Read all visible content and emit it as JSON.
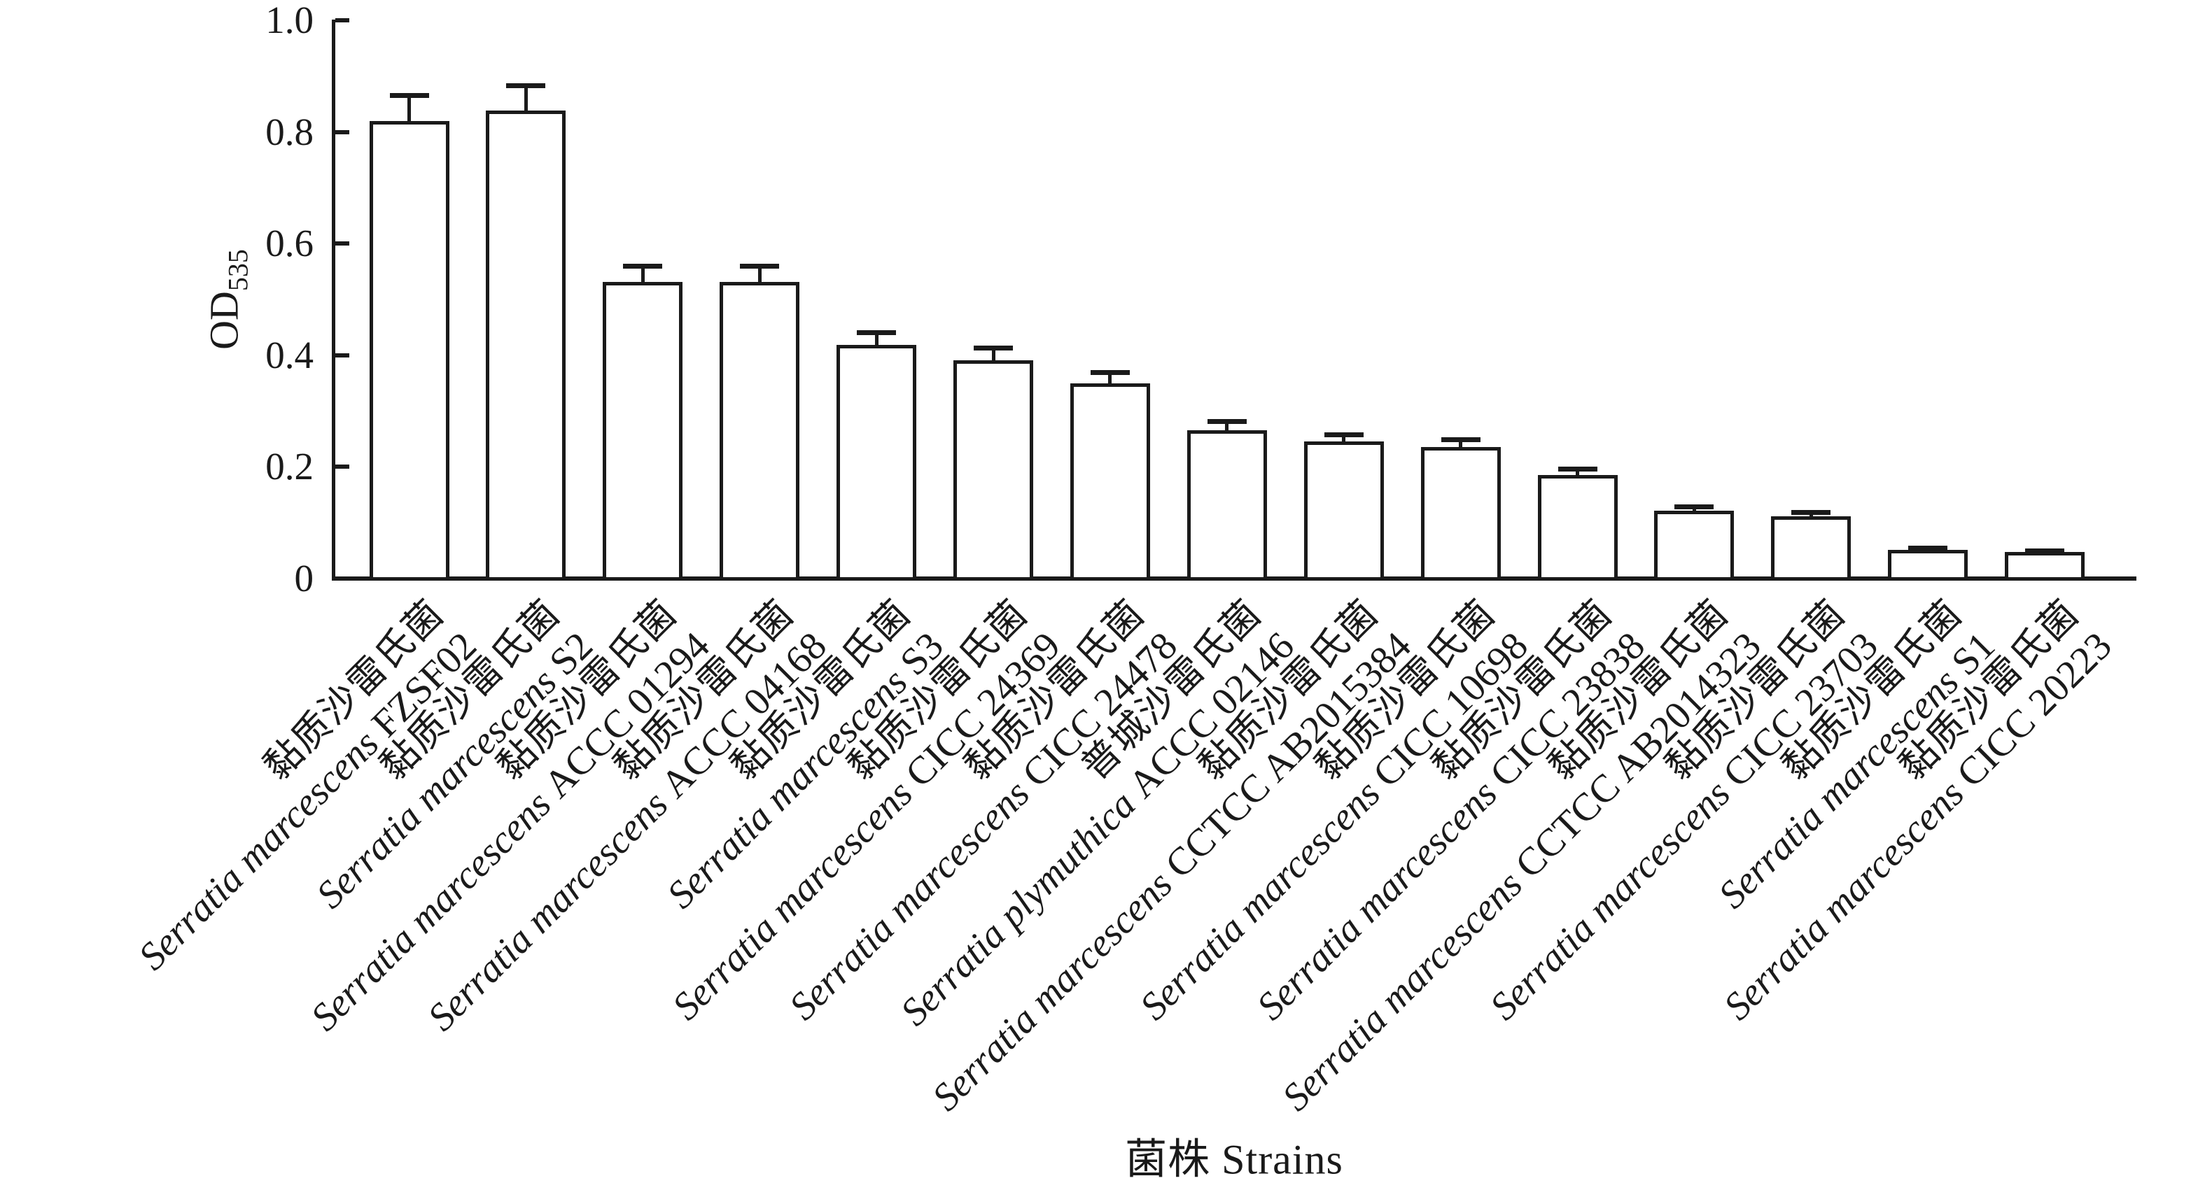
{
  "figure": {
    "x_axis_title": "菌株 Strains",
    "y_axis_label_main": "OD",
    "y_axis_label_sub": "535"
  },
  "chart_data": {
    "type": "bar",
    "title": "",
    "xlabel": "菌株 Strains",
    "ylabel": "OD535",
    "ylim": [
      0,
      1.0
    ],
    "yticks": [
      0,
      0.2,
      0.4,
      0.6,
      0.8,
      1.0
    ],
    "ytick_labels": [
      "0",
      "0.2",
      "0.4",
      "0.6",
      "0.8",
      "1.0"
    ],
    "grid": false,
    "legend": null,
    "bar_fill": "#ffffff",
    "bar_stroke": "#1a1a1a",
    "error_bars": "plus_only",
    "categories": [
      {
        "cn": "黏质沙雷氏菌",
        "species": "Serratia marcescens",
        "code": "FZSF02"
      },
      {
        "cn": "黏质沙雷氏菌",
        "species": "Serratia marcescens",
        "code": "S2"
      },
      {
        "cn": "黏质沙雷氏菌",
        "species": "Serratia marcescens",
        "code": "ACCC 01294"
      },
      {
        "cn": "黏质沙雷氏菌",
        "species": "Serratia marcescens",
        "code": "ACCC 04168"
      },
      {
        "cn": "黏质沙雷氏菌",
        "species": "Serratia marcescens",
        "code": "S3"
      },
      {
        "cn": "黏质沙雷氏菌",
        "species": "Serratia marcescens",
        "code": "CICC 24369"
      },
      {
        "cn": "黏质沙雷氏菌",
        "species": "Serratia marcescens",
        "code": "CICC 24478"
      },
      {
        "cn": "普城沙雷氏菌",
        "species": "Serratia plymuthica",
        "code": "ACCC 02146"
      },
      {
        "cn": "黏质沙雷氏菌",
        "species": "Serratia marcescens",
        "code": "CCTCC AB2015384"
      },
      {
        "cn": "黏质沙雷氏菌",
        "species": "Serratia marcescens",
        "code": "CICC 10698"
      },
      {
        "cn": "黏质沙雷氏菌",
        "species": "Serratia marcescens",
        "code": "CICC 23838"
      },
      {
        "cn": "黏质沙雷氏菌",
        "species": "Serratia marcescens",
        "code": "CCTCC AB2014323"
      },
      {
        "cn": "黏质沙雷氏菌",
        "species": "Serratia marcescens",
        "code": "CICC 23703"
      },
      {
        "cn": "黏质沙雷氏菌",
        "species": "Serratia marcescens",
        "code": "S1"
      },
      {
        "cn": "黏质沙雷氏菌",
        "species": "Serratia marcescens",
        "code": "CICC 20223"
      }
    ],
    "values": [
      0.82,
      0.838,
      0.531,
      0.531,
      0.418,
      0.391,
      0.349,
      0.266,
      0.246,
      0.236,
      0.186,
      0.121,
      0.112,
      0.052,
      0.047
    ],
    "errors_plus": [
      0.045,
      0.045,
      0.028,
      0.028,
      0.022,
      0.022,
      0.02,
      0.015,
      0.012,
      0.013,
      0.01,
      0.007,
      0.006,
      0.003,
      0.002
    ]
  }
}
